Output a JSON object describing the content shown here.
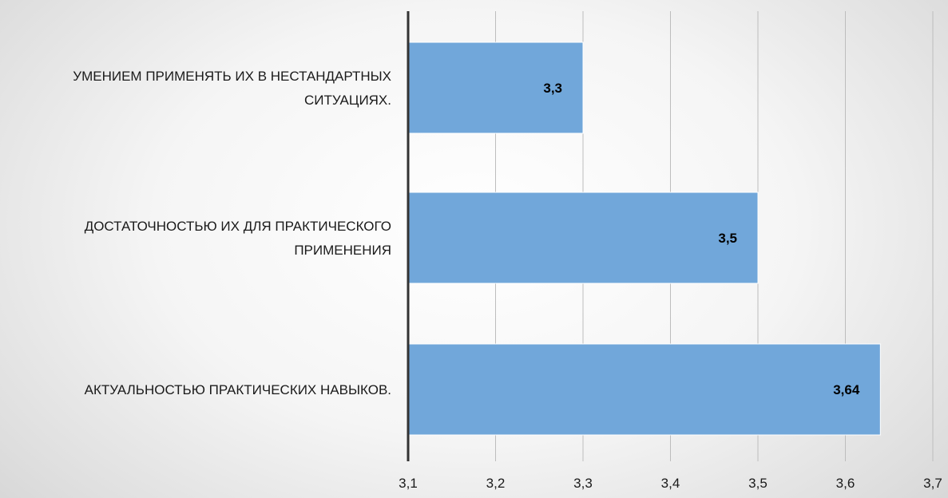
{
  "chart_data": {
    "type": "bar",
    "orientation": "horizontal",
    "categories": [
      [
        "УМЕНИЕМ ПРИМЕНЯТЬ ИХ В НЕСТАНДАРТНЫХ",
        "СИТУАЦИЯХ."
      ],
      [
        "ДОСТАТОЧНОСТЬЮ ИХ ДЛЯ ПРАКТИЧЕСКОГО",
        "ПРИМЕНЕНИЯ"
      ],
      [
        "АКТУАЛЬНОСТЬЮ ПРАКТИЧЕСКИХ НАВЫКОВ."
      ]
    ],
    "values": [
      3.3,
      3.5,
      3.64
    ],
    "data_labels": [
      "3,3",
      "3,5",
      "3,64"
    ],
    "xlim": [
      3.1,
      3.7
    ],
    "ticks": [
      3.1,
      3.2,
      3.3,
      3.4,
      3.5,
      3.6,
      3.7
    ],
    "tick_labels": [
      "3,1",
      "3,2",
      "3,3",
      "3,4",
      "3,5",
      "3,6",
      "3,7"
    ],
    "title": "",
    "xlabel": "",
    "ylabel": "",
    "grid": "vertical",
    "legend": "none",
    "colors": {
      "bar_fill": "#71a7da",
      "bar_stroke": "#ffffff",
      "gridline": "#bdbdbd",
      "axis_line": "#333333"
    }
  }
}
